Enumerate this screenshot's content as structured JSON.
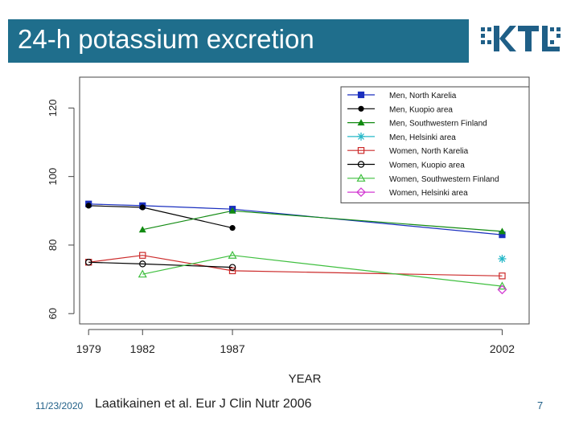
{
  "slide": {
    "title": "24-h potassium excretion",
    "logo_text": "KTL",
    "footer_date": "11/23/2020",
    "footer_reference": "Laatikainen et al. Eur J Clin Nutr 2006",
    "page_number": "7"
  },
  "colors": {
    "title_bar": "#1f6e8c",
    "logo": "#1f5f87"
  },
  "chart_data": {
    "type": "line",
    "title": "",
    "xlabel": "YEAR",
    "ylabel": "",
    "x_ticks": [
      1979,
      1982,
      1987,
      2002
    ],
    "y_ticks": [
      60,
      80,
      100,
      120
    ],
    "xlim": [
      1978.5,
      2003.5
    ],
    "ylim": [
      57,
      129
    ],
    "grid": false,
    "legend_position": "top-right",
    "series": [
      {
        "name": "Men, North Karelia",
        "color": "#1a2fbf",
        "marker": "square-filled",
        "points": [
          [
            1979,
            92
          ],
          [
            1982,
            91.5
          ],
          [
            1987,
            90.5
          ],
          [
            2002,
            83
          ]
        ]
      },
      {
        "name": "Men, Kuopio area",
        "color": "#000000",
        "marker": "circle-filled",
        "points": [
          [
            1979,
            91.5
          ],
          [
            1982,
            91
          ],
          [
            1987,
            85
          ]
        ]
      },
      {
        "name": "Men, Southwestern Finland",
        "color": "#118a11",
        "marker": "triangle-filled",
        "points": [
          [
            1982,
            84.5
          ],
          [
            1987,
            90
          ],
          [
            2002,
            84
          ]
        ]
      },
      {
        "name": "Men, Helsinki area",
        "color": "#26b8c8",
        "marker": "asterisk",
        "points": [
          [
            2002,
            76
          ]
        ]
      },
      {
        "name": "Women, North Karelia",
        "color": "#cc2a2a",
        "marker": "square-open",
        "points": [
          [
            1979,
            75
          ],
          [
            1982,
            77
          ],
          [
            1987,
            72.5
          ],
          [
            2002,
            71
          ]
        ]
      },
      {
        "name": "Women, Kuopio area",
        "color": "#000000",
        "marker": "circle-open",
        "points": [
          [
            1979,
            75
          ],
          [
            1982,
            74.5
          ],
          [
            1987,
            73.5
          ]
        ]
      },
      {
        "name": "Women, Southwestern Finland",
        "color": "#3fbf3f",
        "marker": "triangle-open",
        "points": [
          [
            1982,
            71.5
          ],
          [
            1987,
            77
          ],
          [
            2002,
            68
          ]
        ]
      },
      {
        "name": "Women, Helsinki area",
        "color": "#d23ad2",
        "marker": "diamond-open",
        "points": [
          [
            2002,
            67
          ]
        ]
      }
    ]
  }
}
